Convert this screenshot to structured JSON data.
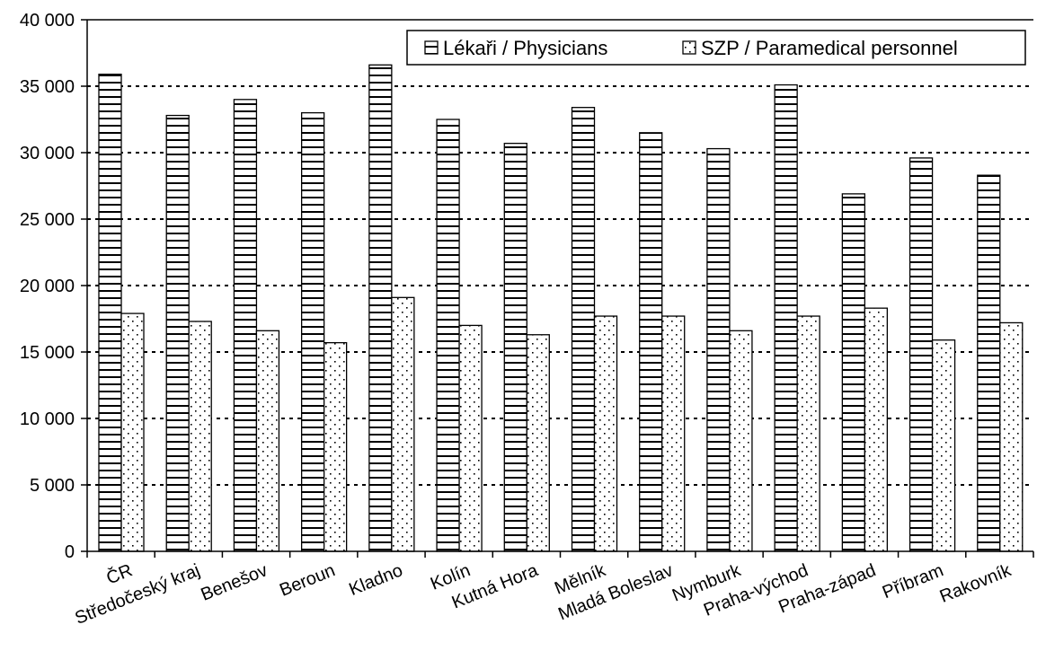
{
  "chart_data": {
    "type": "bar",
    "title": "",
    "xlabel": "",
    "ylabel": "",
    "ylim": [
      0,
      40000
    ],
    "yticks": [
      0,
      5000,
      10000,
      15000,
      20000,
      25000,
      30000,
      35000,
      40000
    ],
    "ytick_labels": [
      "0",
      "5 000",
      "10 000",
      "15 000",
      "20 000",
      "25 000",
      "30 000",
      "35 000",
      "40 000"
    ],
    "grid": "horizontal dotted",
    "legend_position": "top-right",
    "categories": [
      "ČR",
      "Středočeský kraj",
      "Benešov",
      "Beroun",
      "Kladno",
      "Kolín",
      "Kutná Hora",
      "Mělník",
      "Mladá Boleslav",
      "Nymburk",
      "Praha-východ",
      "Praha-západ",
      "Příbram",
      "Rakovník"
    ],
    "series": [
      {
        "name": "Lékaři / Physicians",
        "pattern": "horizontal-stripes",
        "values": [
          35900,
          32800,
          34000,
          33000,
          36600,
          32500,
          30700,
          33400,
          31500,
          30300,
          35100,
          26900,
          29600,
          28300
        ]
      },
      {
        "name": "SZP / Paramedical personnel",
        "pattern": "dots",
        "values": [
          17900,
          17300,
          16600,
          15700,
          19100,
          17000,
          16300,
          17700,
          17700,
          16600,
          17700,
          18300,
          15900,
          17200
        ]
      }
    ]
  }
}
